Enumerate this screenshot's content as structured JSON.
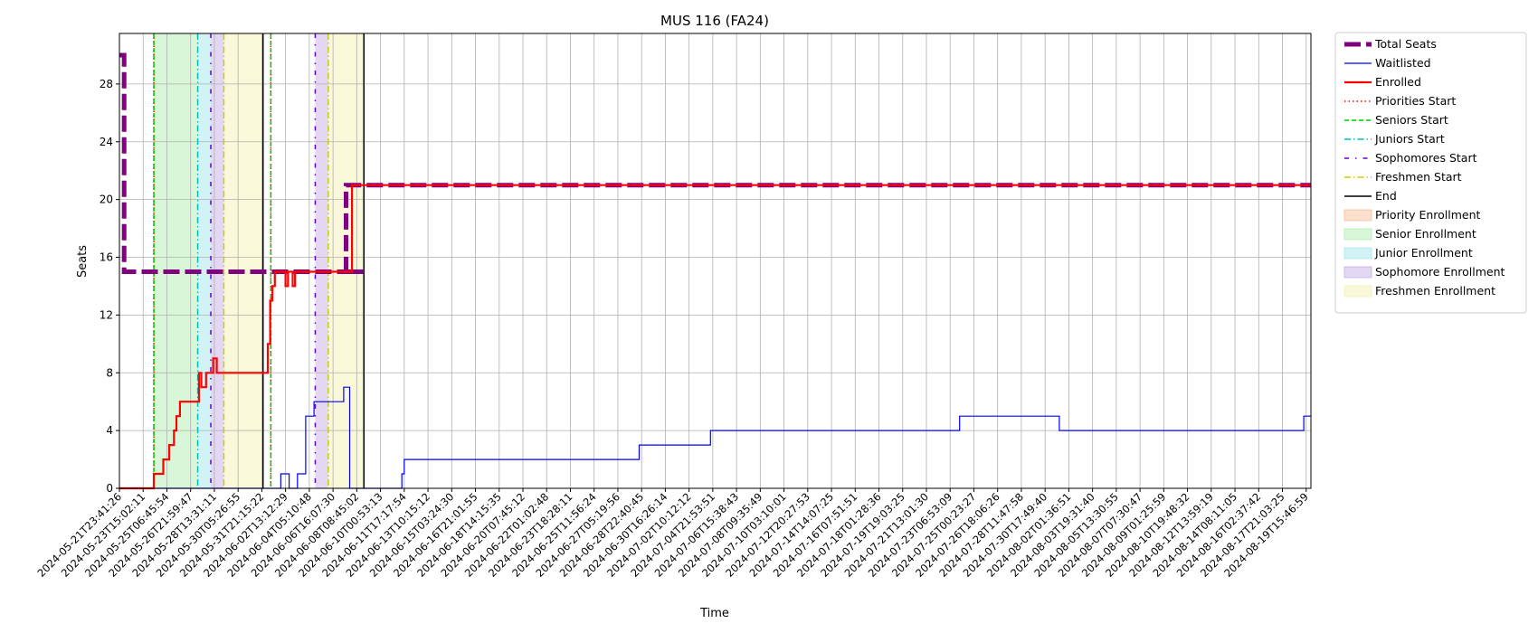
{
  "chart_data": {
    "type": "line",
    "title": "MUS 116 (FA24)",
    "xlabel": "Time",
    "ylabel": "Seats",
    "ylim": [
      0,
      31.5
    ],
    "yticks": [
      0,
      4,
      8,
      12,
      16,
      20,
      24,
      28
    ],
    "grid": true,
    "legend_position": "outside-top-right",
    "x_tick_labels": [
      "2024-05-21T23:41:26",
      "2024-05-23T15:02:11",
      "2024-05-25T06:45:54",
      "2024-05-26T21:59:47",
      "2024-05-28T13:31:11",
      "2024-05-30T05:26:55",
      "2024-05-31T21:15:22",
      "2024-06-02T13:12:29",
      "2024-06-04T05:10:48",
      "2024-06-06T16:07:30",
      "2024-06-08T08:45:02",
      "2024-06-10T00:53:13",
      "2024-06-11T17:17:54",
      "2024-06-13T10:15:12",
      "2024-06-15T03:24:30",
      "2024-06-16T21:01:55",
      "2024-06-18T14:15:35",
      "2024-06-20T07:45:12",
      "2024-06-22T01:02:48",
      "2024-06-23T18:28:11",
      "2024-06-25T11:56:24",
      "2024-06-27T05:19:56",
      "2024-06-28T22:40:45",
      "2024-06-30T16:26:14",
      "2024-07-02T10:12:12",
      "2024-07-04T21:53:51",
      "2024-07-06T15:38:43",
      "2024-07-08T09:35:49",
      "2024-07-10T03:10:01",
      "2024-07-12T20:27:53",
      "2024-07-14T14:07:25",
      "2024-07-16T07:51:51",
      "2024-07-18T01:28:36",
      "2024-07-19T19:03:25",
      "2024-07-21T13:01:30",
      "2024-07-23T06:53:09",
      "2024-07-25T00:23:27",
      "2024-07-26T18:06:26",
      "2024-07-28T11:47:58",
      "2024-07-30T17:49:40",
      "2024-08-02T01:36:51",
      "2024-08-03T19:31:40",
      "2024-08-05T13:30:55",
      "2024-08-07T07:30:47",
      "2024-08-09T01:25:59",
      "2024-08-10T19:48:32",
      "2024-08-12T13:59:19",
      "2024-08-14T08:11:05",
      "2024-08-16T02:37:42",
      "2024-08-17T21:03:25",
      "2024-08-19T15:46:59"
    ],
    "x_index_range": [
      0,
      50.2
    ],
    "series": [
      {
        "name": "Total Seats",
        "color": "#800080",
        "style": "dashed-thick",
        "x": [
          0,
          0.2,
          0.2,
          6.5,
          6.5,
          10.3,
          10.3,
          9.55,
          9.55,
          50.2
        ],
        "y": [
          30,
          30,
          15,
          15,
          15,
          15,
          15,
          15,
          21,
          21
        ]
      },
      {
        "name": "Waitlisted",
        "color": "#0000ff",
        "style": "solid-thin",
        "x": [
          0,
          6.8,
          6.8,
          7.15,
          7.15,
          7.5,
          7.5,
          7.85,
          7.85,
          8.2,
          8.2,
          8.55,
          8.55,
          9.45,
          9.45,
          9.7,
          9.7,
          11.9,
          11.9,
          12.0,
          12.0,
          21.9,
          21.9,
          24.9,
          24.9,
          35.4,
          35.4,
          39.6,
          39.6,
          49.9,
          49.9,
          50.2
        ],
        "y": [
          0,
          0,
          1,
          1,
          0,
          0,
          1,
          1,
          5,
          5,
          6,
          6,
          6,
          6,
          7,
          7,
          0,
          0,
          1,
          1,
          2,
          2,
          3,
          3,
          4,
          4,
          5,
          5,
          4,
          4,
          5,
          5
        ]
      },
      {
        "name": "Enrolled",
        "color": "#ff0000",
        "style": "solid",
        "x": [
          0,
          1.45,
          1.45,
          1.85,
          1.85,
          2.1,
          2.1,
          2.3,
          2.3,
          2.4,
          2.4,
          2.55,
          2.55,
          3.35,
          3.35,
          3.45,
          3.45,
          3.5,
          3.5,
          3.65,
          3.65,
          3.95,
          3.95,
          4.0,
          4.0,
          4.1,
          4.1,
          4.2,
          4.2,
          6.25,
          6.25,
          6.35,
          6.35,
          6.45,
          6.45,
          6.55,
          6.55,
          7.0,
          7.0,
          7.1,
          7.1,
          7.3,
          7.3,
          7.4,
          7.4,
          7.6,
          7.6,
          9.8,
          9.8,
          50.2
        ],
        "y": [
          0,
          0,
          1,
          1,
          2,
          2,
          3,
          3,
          4,
          4,
          5,
          5,
          6,
          6,
          8,
          8,
          7,
          7,
          7,
          7,
          8,
          8,
          9,
          9,
          9,
          9,
          8,
          8,
          8,
          8,
          10,
          10,
          13,
          13,
          14,
          14,
          15,
          15,
          14,
          14,
          15,
          15,
          14,
          14,
          15,
          15,
          15,
          15,
          21,
          21
        ]
      }
    ],
    "vertical_lines": [
      {
        "name": "Priorities Start",
        "color": "#ff0000",
        "style": "dotted",
        "x": [
          1.45,
          6.38
        ]
      },
      {
        "name": "Seniors Start",
        "color": "#00cc00",
        "style": "dashed",
        "x": [
          1.45,
          6.38
        ]
      },
      {
        "name": "Juniors Start",
        "color": "#00bfbf",
        "style": "dashdot",
        "x": [
          3.3
        ]
      },
      {
        "name": "Sophomores Start",
        "color": "#6600cc",
        "style": "dashdot-sparse",
        "x": [
          3.85,
          8.25
        ]
      },
      {
        "name": "Freshmen Start",
        "color": "#cccc00",
        "style": "dashdot",
        "x": [
          4.4,
          8.8
        ]
      },
      {
        "name": "End",
        "color": "#000000",
        "style": "solid",
        "x": [
          6.05,
          10.3
        ]
      }
    ],
    "spans": [
      {
        "name": "Priority Enrollment",
        "color": "#f4b183",
        "ranges": []
      },
      {
        "name": "Senior Enrollment",
        "color": "#9de89d",
        "ranges": [
          [
            1.45,
            3.3
          ]
        ]
      },
      {
        "name": "Junior Enrollment",
        "color": "#8fe0e8",
        "ranges": [
          [
            3.3,
            3.85
          ]
        ]
      },
      {
        "name": "Sophomore Enrollment",
        "color": "#b89be0",
        "ranges": [
          [
            3.85,
            4.4
          ],
          [
            8.25,
            8.8
          ]
        ]
      },
      {
        "name": "Freshmen Enrollment",
        "color": "#f0f0a0",
        "ranges": [
          [
            4.4,
            6.05
          ],
          [
            8.8,
            10.3
          ]
        ]
      }
    ],
    "legend": [
      {
        "label": "Total Seats",
        "kind": "line",
        "color": "#800080",
        "style": "dashed-thick"
      },
      {
        "label": "Waitlisted",
        "kind": "line",
        "color": "#0000ff",
        "style": "solid-thin"
      },
      {
        "label": "Enrolled",
        "kind": "line",
        "color": "#ff0000",
        "style": "solid"
      },
      {
        "label": "Priorities Start",
        "kind": "line",
        "color": "#ff0000",
        "style": "dotted"
      },
      {
        "label": "Seniors Start",
        "kind": "line",
        "color": "#00cc00",
        "style": "dashed"
      },
      {
        "label": "Juniors Start",
        "kind": "line",
        "color": "#00bfbf",
        "style": "dashdot"
      },
      {
        "label": "Sophomores Start",
        "kind": "line",
        "color": "#6600cc",
        "style": "dashdot-sparse"
      },
      {
        "label": "Freshmen Start",
        "kind": "line",
        "color": "#cccc00",
        "style": "dashdot"
      },
      {
        "label": "End",
        "kind": "line",
        "color": "#000000",
        "style": "solid"
      },
      {
        "label": "Priority Enrollment",
        "kind": "patch",
        "color": "#f4b183"
      },
      {
        "label": "Senior Enrollment",
        "kind": "patch",
        "color": "#9de89d"
      },
      {
        "label": "Junior Enrollment",
        "kind": "patch",
        "color": "#8fe0e8"
      },
      {
        "label": "Sophomore Enrollment",
        "kind": "patch",
        "color": "#b89be0"
      },
      {
        "label": "Freshmen Enrollment",
        "kind": "patch",
        "color": "#f0f0a0"
      }
    ]
  }
}
